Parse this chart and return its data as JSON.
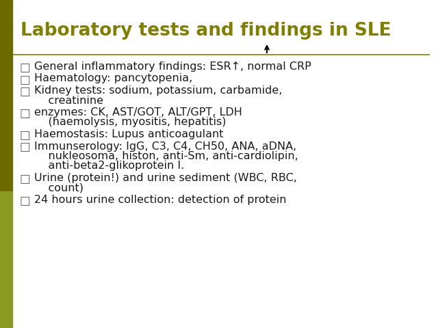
{
  "title": "Laboratory tests and findings in SLE",
  "title_color": "#808000",
  "title_fontsize": 19,
  "background_color": "#ffffff",
  "divider_color": "#808000",
  "text_color": "#1a1a1a",
  "text_fontsize": 11.5,
  "bullet_char": "□",
  "bullet_color": "#5a5a5a",
  "items": [
    [
      "General inflammatory findings: ESR↑, normal CRP"
    ],
    [
      "Haematology: pancytopenia,"
    ],
    [
      "Kidney tests: sodium, potassium, carbamide,",
      "    creatinine"
    ],
    [
      "enzymes: CK, AST/GOT, ALT/GPT, LDH",
      "    (haemolysis, myositis, hepatitis)"
    ],
    [
      "Haemostasis: Lupus anticoagulant"
    ],
    [
      "Immunserology: IgG, C3, C4, CH50, ANA, aDNA,",
      "    nukleosoma, histon, anti-Sm, anti-cardiolipin,",
      "    anti-beta2-glikoprotein I."
    ],
    [
      "Urine (protein!) and urine sediment (WBC, RBC,",
      "    count)"
    ],
    [
      "24 hours urine collection: detection of protein"
    ]
  ],
  "left_bar_color_top": "#6b6b00",
  "left_bar_color_bottom": "#8a9a20",
  "figsize": [
    6.4,
    4.8
  ],
  "dpi": 100
}
